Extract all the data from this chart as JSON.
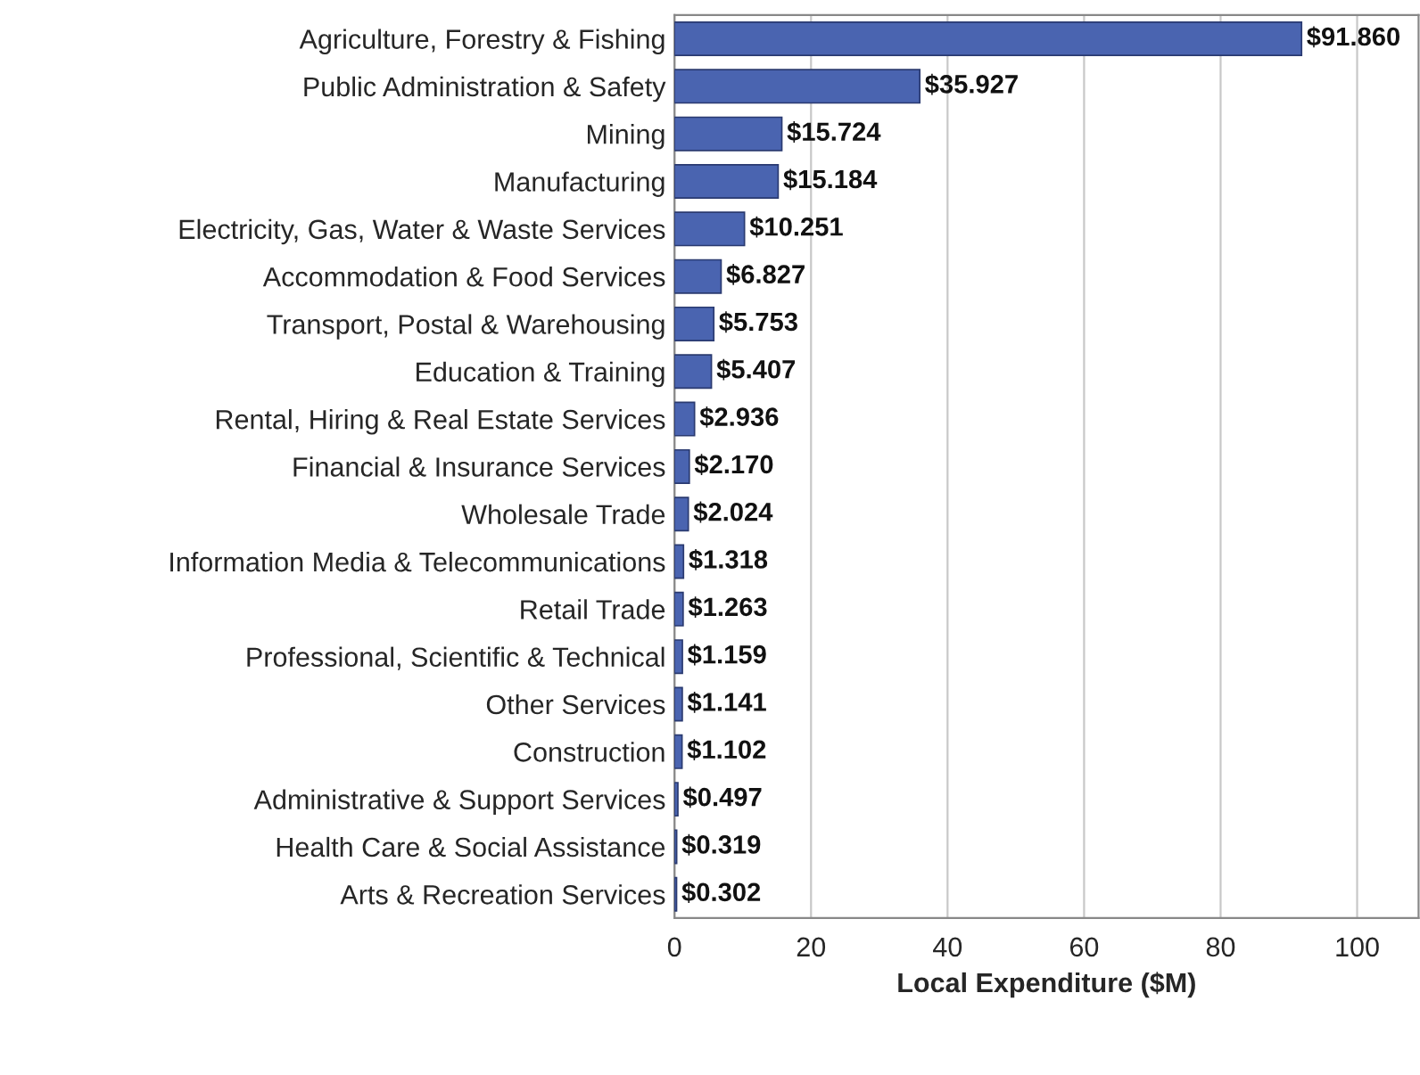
{
  "chart_data": {
    "type": "bar",
    "orientation": "horizontal",
    "xlabel": "Local Expenditure ($M)",
    "categories": [
      "Agriculture, Forestry & Fishing",
      "Public Administration & Safety",
      "Mining",
      "Manufacturing",
      "Electricity, Gas, Water & Waste Services",
      "Accommodation & Food Services",
      "Transport, Postal & Warehousing",
      "Education & Training",
      "Rental, Hiring & Real Estate Services",
      "Financial & Insurance Services",
      "Wholesale Trade",
      "Information Media & Telecommunications",
      "Retail Trade",
      "Professional, Scientific & Technical",
      "Other Services",
      "Construction",
      "Administrative & Support Services",
      "Health Care & Social Assistance",
      "Arts & Recreation Services"
    ],
    "values": [
      91.86,
      35.927,
      15.724,
      15.184,
      10.251,
      6.827,
      5.753,
      5.407,
      2.936,
      2.17,
      2.024,
      1.318,
      1.263,
      1.159,
      1.141,
      1.102,
      0.497,
      0.319,
      0.302
    ],
    "value_labels": [
      "$91.860",
      "$35.927",
      "$15.724",
      "$15.184",
      "$10.251",
      "$6.827",
      "$5.753",
      "$5.407",
      "$2.936",
      "$2.170",
      "$2.024",
      "$1.318",
      "$1.263",
      "$1.159",
      "$1.141",
      "$1.102",
      "$0.497",
      "$0.319",
      "$0.302"
    ],
    "color": "#4a64b0",
    "xlim": [
      0,
      109
    ],
    "xticks": [
      0,
      20,
      40,
      60,
      80,
      100
    ],
    "grid": "x"
  }
}
